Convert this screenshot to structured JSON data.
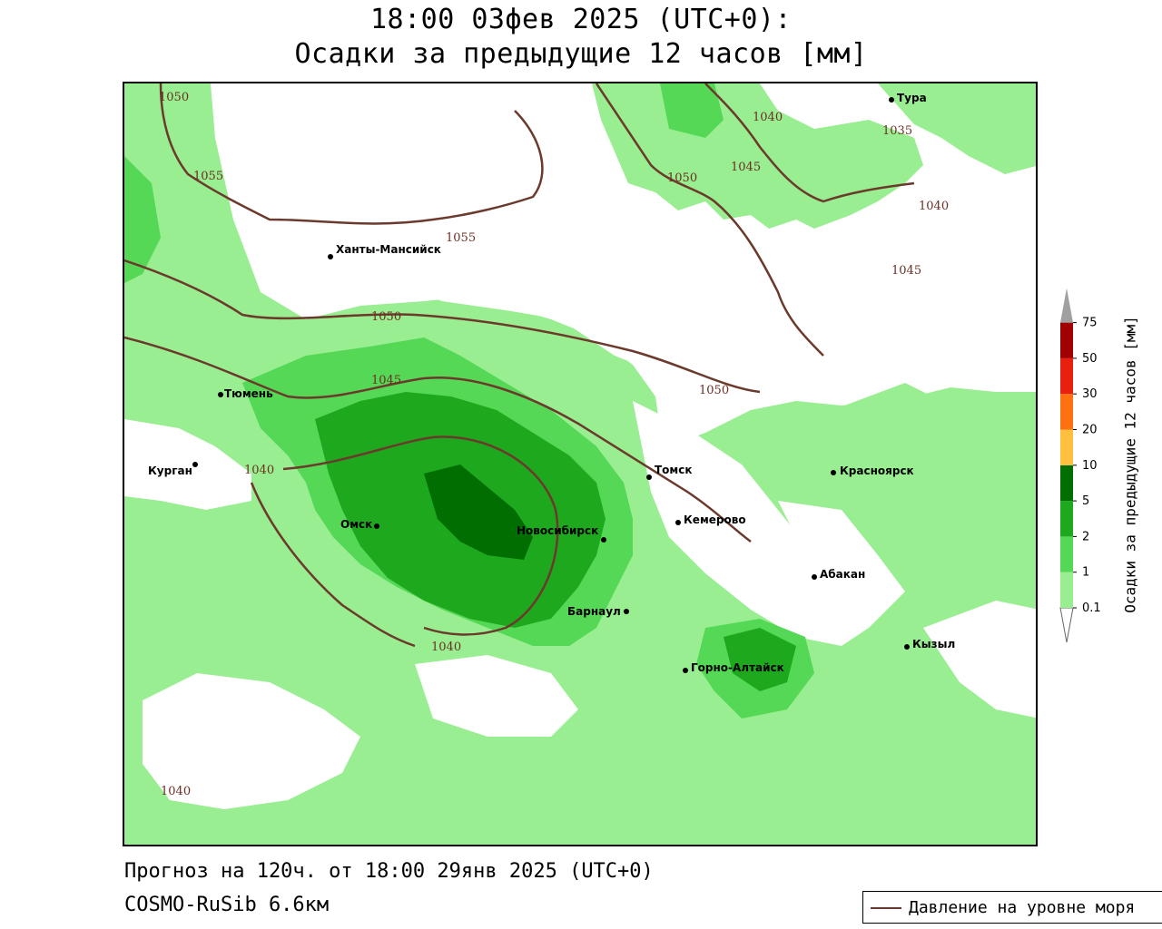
{
  "title": {
    "line1": "18:00 03фев 2025 (UTC+0):",
    "line2": "Осадки за предыдущие 12 часов [мм]"
  },
  "footer": {
    "forecast": "Прогноз на 120ч. от 18:00 29янв 2025 (UTC+0)",
    "model": "COSMO-RuSib 6.6км"
  },
  "legend": {
    "isobar_label": "Давление на уровне моря",
    "isobar_color": "#6b3a2c"
  },
  "colorbar": {
    "title": "Осадки за предыдущие 12 часов [мм]",
    "ticks": [
      "0.1",
      "1",
      "2",
      "5",
      "10",
      "20",
      "30",
      "50",
      "75"
    ],
    "colors": [
      "#98ee90",
      "#55d855",
      "#1ea81e",
      "#006e00",
      "#ffc040",
      "#ff7010",
      "#e82010",
      "#a00000"
    ],
    "over_color": "#a0a0a0"
  },
  "cities": [
    {
      "name": "Тура"
    },
    {
      "name": "Ханты-Мансийск"
    },
    {
      "name": "Тюмень"
    },
    {
      "name": "Курган"
    },
    {
      "name": "Омск"
    },
    {
      "name": "Новосибирск"
    },
    {
      "name": "Томск"
    },
    {
      "name": "Кемерово"
    },
    {
      "name": "Красноярск"
    },
    {
      "name": "Абакан"
    },
    {
      "name": "Барнаул"
    },
    {
      "name": "Горно-Алтайск"
    },
    {
      "name": "Кызыл"
    }
  ],
  "isobar_labels": [
    "1050",
    "1055",
    "1055",
    "1040",
    "1035",
    "1050",
    "1045",
    "1040",
    "1045",
    "1050",
    "1045",
    "1050",
    "1040",
    "1040",
    "1040"
  ]
}
